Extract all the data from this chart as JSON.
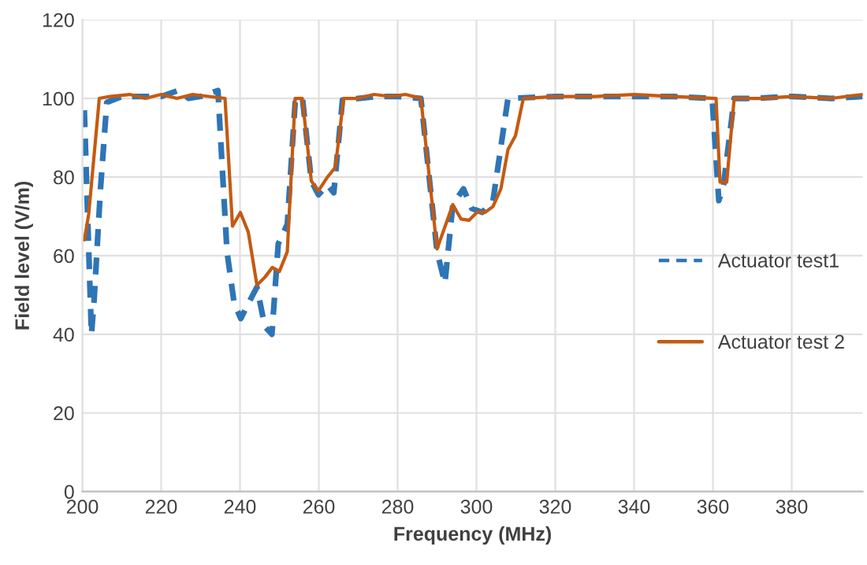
{
  "chart_data": {
    "type": "line",
    "xlabel": "Frequency (MHz)",
    "ylabel": "Field level (V/m)",
    "xlim": [
      200,
      398
    ],
    "xticks": [
      200,
      220,
      240,
      260,
      280,
      300,
      320,
      340,
      360,
      380
    ],
    "ylim": [
      0,
      120
    ],
    "yticks": [
      0,
      20,
      40,
      60,
      80,
      100,
      120
    ],
    "grid": true,
    "legend": "right",
    "marker": "none",
    "series": [
      {
        "name": "Actuator test1",
        "color": "#2e75b6",
        "line_style": "dashed",
        "x": [
          200.5,
          201.5,
          202.3,
          203,
          204.6,
          206.2,
          210,
          215,
          220,
          224.3,
          227,
          230,
          234.4,
          235.8,
          236.7,
          238.5,
          240.2,
          242.2,
          244.3,
          246.3,
          248.1,
          249.7,
          252,
          254,
          255.8,
          258.1,
          259.9,
          262.2,
          263.8,
          266,
          270,
          275,
          280,
          285.9,
          290,
          292,
          294,
          296.7,
          298.8,
          301.5,
          304.2,
          308,
          320,
          330,
          340,
          350,
          359.8,
          361.5,
          362.7,
          365.4,
          370,
          380,
          390,
          398
        ],
        "values": [
          97,
          65,
          40,
          49,
          77,
          99,
          100.5,
          100.5,
          100.5,
          102,
          100,
          100.5,
          102,
          77,
          61,
          48,
          44,
          48,
          52,
          42,
          40,
          63,
          68,
          99,
          100.5,
          79,
          75.5,
          78,
          76,
          99.6,
          100,
          100.5,
          100.5,
          100,
          61,
          53,
          73,
          77,
          72,
          71,
          74,
          100,
          100.5,
          100.5,
          100.5,
          100.5,
          100,
          74,
          78,
          100,
          100,
          100.5,
          100,
          100.5
        ]
      },
      {
        "name": "Actuator test 2",
        "color": "#c55a11",
        "line_style": "solid",
        "x": [
          200.5,
          201.6,
          204.3,
          207,
          212,
          216,
          220,
          224,
          228,
          232,
          236.2,
          238.1,
          240.1,
          242.1,
          244.3,
          246.3,
          248.2,
          250,
          252,
          254,
          255.8,
          258.1,
          259.9,
          260.9,
          262.2,
          264.2,
          266.3,
          270,
          274,
          278,
          282,
          285.9,
          290,
          294,
          296.1,
          298.1,
          300.1,
          302.2,
          304.2,
          306.2,
          308,
          309.9,
          311.9,
          320,
          330,
          340,
          350,
          360.8,
          361.8,
          363.5,
          365.4,
          372,
          380,
          390,
          398
        ],
        "values": [
          64,
          70.5,
          100,
          100.5,
          101,
          100,
          101,
          100,
          101,
          100.5,
          100,
          67.5,
          71,
          66,
          52.5,
          54.5,
          57,
          56,
          61,
          100,
          100,
          79,
          76.5,
          78,
          80,
          82.5,
          100,
          100,
          101,
          100.5,
          101,
          100,
          61.7,
          73,
          69.3,
          69,
          71,
          71,
          72.5,
          77,
          87,
          90.5,
          100,
          100.5,
          100.5,
          101,
          100.5,
          100,
          78.7,
          78.7,
          100,
          100,
          100.5,
          100,
          101
        ]
      }
    ]
  }
}
